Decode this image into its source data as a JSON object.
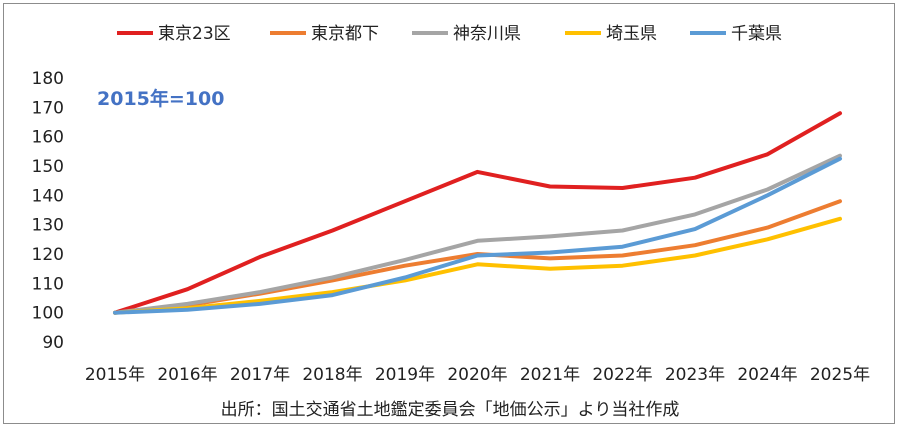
{
  "chart_data": {
    "type": "line",
    "title": "",
    "annotation": "2015年=100",
    "annotation_color": "#4472c4",
    "source": "出所：国土交通省土地鑑定委員会「地価公示」より当社作成",
    "categories": [
      "2015年",
      "2016年",
      "2017年",
      "2018年",
      "2019年",
      "2020年",
      "2021年",
      "2022年",
      "2023年",
      "2024年",
      "2025年"
    ],
    "ylim": [
      90,
      180
    ],
    "yticks": [
      90,
      100,
      110,
      120,
      130,
      140,
      150,
      160,
      170,
      180
    ],
    "grid": false,
    "legend_position": "top",
    "series": [
      {
        "name": "東京23区",
        "color": "#e02020",
        "values": [
          100,
          108,
          119,
          128,
          138,
          148,
          143,
          142.5,
          146,
          154,
          168
        ]
      },
      {
        "name": "東京都下",
        "color": "#ed7d31",
        "values": [
          100,
          102.5,
          106.5,
          111,
          116,
          120,
          118.5,
          119.5,
          123,
          129,
          138
        ]
      },
      {
        "name": "神奈川県",
        "color": "#a5a5a5",
        "values": [
          100,
          103,
          107,
          112,
          118,
          124.5,
          126,
          128,
          133.5,
          142,
          153.5
        ]
      },
      {
        "name": "埼玉県",
        "color": "#ffc000",
        "values": [
          100,
          101.5,
          104,
          107,
          111,
          116.5,
          115,
          116,
          119.5,
          125,
          132
        ]
      },
      {
        "name": "千葉県",
        "color": "#5b9bd5",
        "values": [
          100,
          101,
          103,
          106,
          112,
          119.5,
          120.5,
          122.5,
          128.5,
          140,
          152.5
        ]
      }
    ]
  }
}
